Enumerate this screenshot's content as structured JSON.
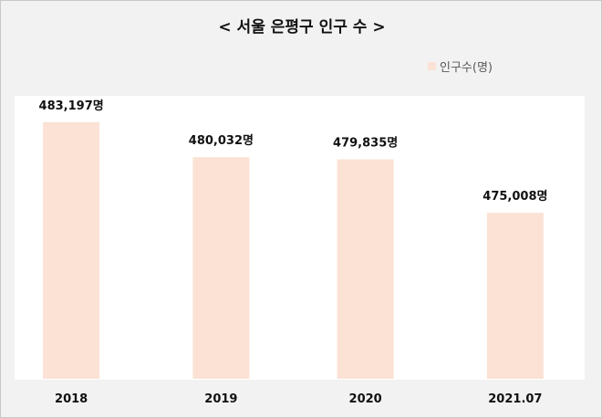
{
  "chart_data": {
    "type": "bar",
    "title": "< 서울 은평구 인구 수 >",
    "categories": [
      "2018",
      "2019",
      "2020",
      "2021.07"
    ],
    "series": [
      {
        "name": "인구수(명)",
        "values": [
          483197,
          480032,
          479835,
          475008
        ],
        "color": "#fbe2d5"
      }
    ],
    "data_labels": [
      "483,197명",
      "480,032명",
      "479,835명",
      "475,008명"
    ],
    "ylim": [
      460000,
      485000
    ],
    "grid": false,
    "legend_position": "top-right",
    "xlabel": "",
    "ylabel": ""
  }
}
